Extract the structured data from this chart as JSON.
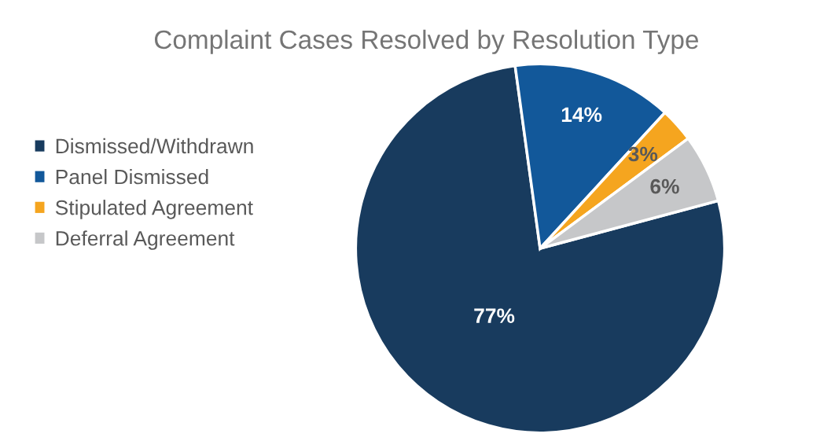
{
  "chart_data": {
    "type": "pie",
    "title": "Complaint Cases Resolved by Resolution Type",
    "categories": [
      "Dismissed/Withdrawn",
      "Panel Dismissed",
      "Stipulated Agreement",
      "Deferral Agreement"
    ],
    "values": [
      77,
      14,
      3,
      6
    ],
    "colors": [
      "#183b5e",
      "#12589a",
      "#f5a51f",
      "#c6c7c9"
    ],
    "value_labels": [
      "77%",
      "14%",
      "3%",
      "6%"
    ],
    "legend": "left"
  }
}
